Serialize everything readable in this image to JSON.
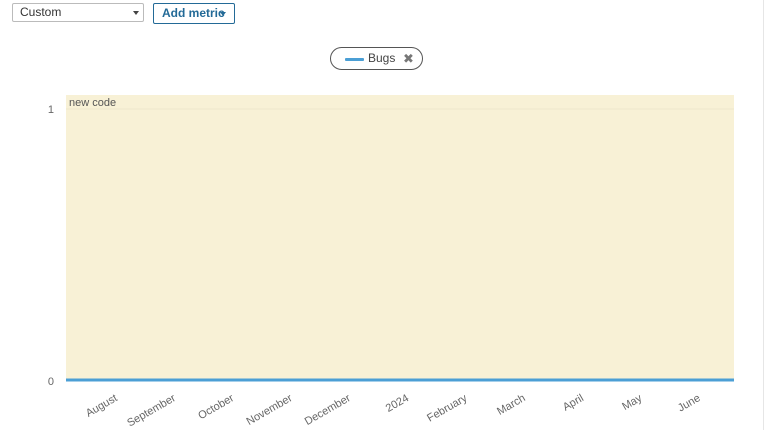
{
  "toolbar": {
    "preset_value": "Custom",
    "add_metric_label": "Add metric"
  },
  "legend": {
    "items": [
      {
        "name": "Bugs",
        "color": "#4b9fd5",
        "icon": "close-icon"
      }
    ]
  },
  "chart_data": {
    "type": "line",
    "x_labels": [
      "August",
      "September",
      "October",
      "November",
      "December",
      "2024",
      "February",
      "March",
      "April",
      "May",
      "June"
    ],
    "y_ticks": [
      0,
      1
    ],
    "ylim": [
      0,
      1
    ],
    "series": [
      {
        "name": "Bugs",
        "color": "#4b9fd5",
        "values": [
          0,
          0,
          0,
          0,
          0,
          0,
          0,
          0,
          0,
          0,
          0
        ]
      }
    ],
    "annotation": {
      "text": "new code",
      "color": "#f8f1d6"
    }
  }
}
